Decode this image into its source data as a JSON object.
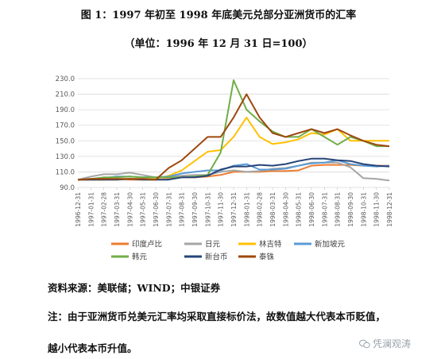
{
  "header": {
    "title": "图 1：1997 年初至 1998 年底美元兑部分亚洲货币的汇率",
    "subtitle": "（单位：1996 年 12 月 31 日=100）"
  },
  "footer": {
    "source": "资料来源：美联储；WIND；中银证券",
    "note_line1": "注：由于亚洲货币兑美元汇率均采取直接标价法，故数值越大代表本币贬值，",
    "note_line2": "越小代表本币升值。",
    "watermark": "凭澜观涛"
  },
  "chart_data": {
    "type": "line",
    "title": "",
    "xlabel": "",
    "ylabel": "",
    "ylim": [
      90,
      230
    ],
    "yticks": [
      "90.0",
      "110.0",
      "130.0",
      "150.0",
      "170.0",
      "190.0",
      "210.0",
      "230.0"
    ],
    "grid": true,
    "legend_position": "bottom",
    "x": [
      "1996-12-31",
      "1997-01-31",
      "1997-02-28",
      "1997-03-31",
      "1997-04-30",
      "1997-05-31",
      "1997-06-30",
      "1997-07-31",
      "1997-08-31",
      "1997-09-30",
      "1997-10-31",
      "1997-11-30",
      "1997-12-31",
      "1998-01-31",
      "1998-02-28",
      "1998-03-31",
      "1998-04-30",
      "1998-05-31",
      "1998-06-30",
      "1998-07-31",
      "1998-08-31",
      "1998-09-30",
      "1998-10-31",
      "1998-11-30",
      "1998-12-31"
    ],
    "series": [
      {
        "name": "印度卢比",
        "color": "#ED7D31",
        "values": [
          100,
          100,
          100,
          101,
          100,
          100,
          100,
          101,
          103,
          103,
          104,
          106,
          110,
          110,
          110,
          111,
          111,
          112,
          118,
          119,
          119,
          119,
          118,
          118,
          118
        ]
      },
      {
        "name": "日元",
        "color": "#A5A5A5",
        "values": [
          100,
          104,
          107,
          107,
          109,
          106,
          103,
          104,
          105,
          106,
          106,
          110,
          112,
          110,
          111,
          114,
          115,
          118,
          122,
          122,
          122,
          116,
          102,
          101,
          99
        ]
      },
      {
        "name": "林吉特",
        "color": "#FFC000",
        "values": [
          100,
          100,
          100,
          100,
          101,
          101,
          101,
          105,
          112,
          124,
          136,
          138,
          155,
          180,
          155,
          146,
          148,
          152,
          160,
          158,
          165,
          150,
          150,
          150,
          150
        ]
      },
      {
        "name": "新加坡元",
        "color": "#5B9BD5",
        "values": [
          100,
          101,
          102,
          104,
          104,
          103,
          103,
          104,
          108,
          110,
          112,
          112,
          118,
          120,
          113,
          113,
          114,
          118,
          121,
          122,
          125,
          120,
          118,
          117,
          118
        ]
      },
      {
        "name": "韩元",
        "color": "#70AD47",
        "values": [
          100,
          101,
          103,
          103,
          104,
          103,
          103,
          103,
          103,
          104,
          106,
          135,
          228,
          190,
          175,
          162,
          155,
          155,
          165,
          155,
          145,
          155,
          150,
          143,
          143
        ]
      },
      {
        "name": "新台币",
        "color": "#264478",
        "values": [
          100,
          100,
          100,
          100,
          101,
          100,
          100,
          100,
          103,
          103,
          105,
          113,
          117,
          117,
          119,
          118,
          120,
          124,
          127,
          127,
          125,
          124,
          120,
          118,
          117
        ]
      },
      {
        "name": "泰铢",
        "color": "#9E480E",
        "values": [
          100,
          101,
          101,
          101,
          101,
          101,
          100,
          115,
          125,
          140,
          155,
          155,
          180,
          210,
          180,
          160,
          155,
          160,
          165,
          160,
          165,
          157,
          150,
          145,
          143
        ]
      }
    ]
  }
}
